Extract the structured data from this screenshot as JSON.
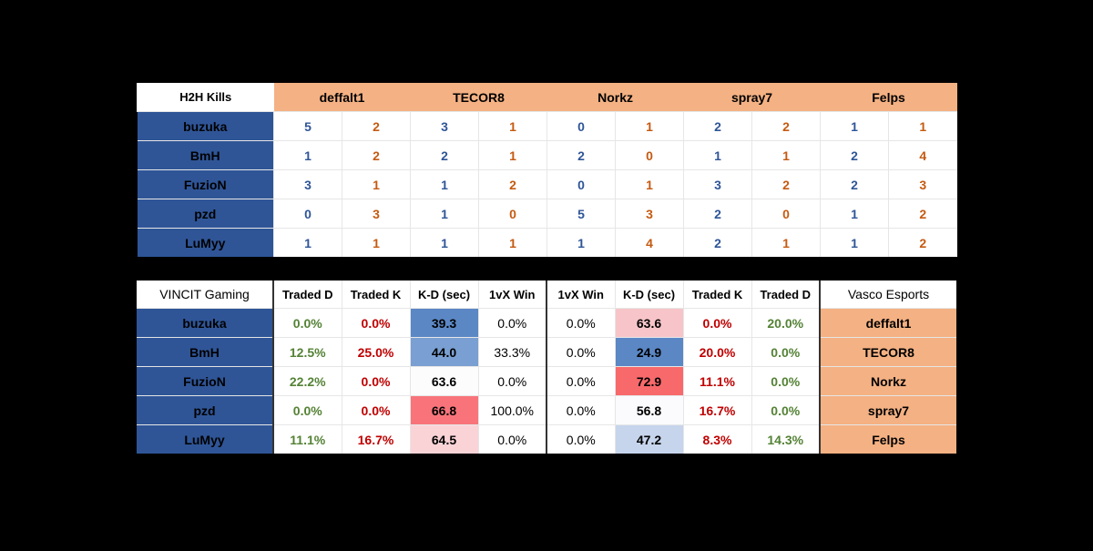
{
  "h2h": {
    "corner_label": "H2H Kills",
    "opponents": [
      "deffalt1",
      "TECOR8",
      "Norkz",
      "spray7",
      "Felps"
    ],
    "rows": [
      {
        "player": "buzuka",
        "values": [
          5,
          2,
          3,
          1,
          0,
          1,
          2,
          2,
          1,
          1
        ]
      },
      {
        "player": "BmH",
        "values": [
          1,
          2,
          2,
          1,
          2,
          0,
          1,
          1,
          2,
          4
        ]
      },
      {
        "player": "FuzioN",
        "values": [
          3,
          1,
          1,
          2,
          0,
          1,
          3,
          2,
          2,
          3
        ]
      },
      {
        "player": "pzd",
        "values": [
          0,
          3,
          1,
          0,
          5,
          3,
          2,
          0,
          1,
          2
        ]
      },
      {
        "player": "LuMyy",
        "values": [
          1,
          1,
          1,
          1,
          1,
          4,
          2,
          1,
          1,
          2
        ]
      }
    ],
    "colors": {
      "kill": "#2f5597",
      "death": "#c55a11",
      "team_left": "#2f5597",
      "team_right": "#f4b183"
    }
  },
  "stats": {
    "left_team": "VINCIT Gaming",
    "right_team": "Vasco Esports",
    "headers": [
      "Traded D",
      "Traded K",
      "K-D (sec)",
      "1vX Win",
      "1vX Win",
      "K-D (sec)",
      "Traded K",
      "Traded D"
    ],
    "rows": [
      {
        "player": "buzuka",
        "opponent": "deffalt1",
        "values": [
          "0.0%",
          "0.0%",
          "39.3",
          "0.0%",
          "0.0%",
          "63.6",
          "0.0%",
          "20.0%"
        ],
        "kd_left_bg": "#5b87c5",
        "kd_right_bg": "#f7c5c9"
      },
      {
        "player": "BmH",
        "opponent": "TECOR8",
        "values": [
          "12.5%",
          "25.0%",
          "44.0",
          "33.3%",
          "0.0%",
          "24.9",
          "20.0%",
          "0.0%"
        ],
        "kd_left_bg": "#7a9fd2",
        "kd_right_bg": "#5b87c5"
      },
      {
        "player": "FuzioN",
        "opponent": "Norkz",
        "values": [
          "22.2%",
          "0.0%",
          "63.6",
          "0.0%",
          "0.0%",
          "72.9",
          "11.1%",
          "0.0%"
        ],
        "kd_left_bg": "#fcfcfd",
        "kd_right_bg": "#f8696b"
      },
      {
        "player": "pzd",
        "opponent": "spray7",
        "values": [
          "0.0%",
          "0.0%",
          "66.8",
          "100.0%",
          "0.0%",
          "56.8",
          "16.7%",
          "0.0%"
        ],
        "kd_left_bg": "#f8747a",
        "kd_right_bg": "#fbfbfe"
      },
      {
        "player": "LuMyy",
        "opponent": "Felps",
        "values": [
          "11.1%",
          "16.7%",
          "64.5",
          "0.0%",
          "0.0%",
          "47.2",
          "8.3%",
          "14.3%"
        ],
        "kd_left_bg": "#fad3d7",
        "kd_right_bg": "#c6d5ec"
      }
    ],
    "colors": {
      "good": "#548235",
      "bad": "#c00000"
    }
  }
}
